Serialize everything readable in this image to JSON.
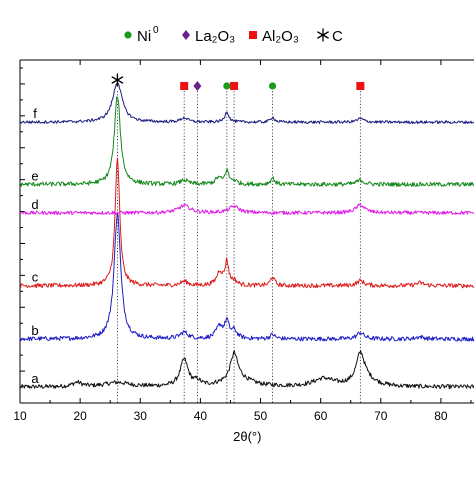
{
  "chart_data": {
    "type": "line",
    "xlabel": "2θ(°)",
    "ylabel": "",
    "xlim": [
      10,
      85
    ],
    "xticks": [
      10,
      20,
      30,
      40,
      50,
      60,
      70,
      80
    ],
    "grid": false,
    "legend": {
      "position": "top",
      "entries": [
        {
          "marker": "circle",
          "color": "#1a9b1a",
          "label": "Ni",
          "superscript": "0"
        },
        {
          "marker": "diamond",
          "color": "#6a1f8a",
          "label": "La₂O₃"
        },
        {
          "marker": "square",
          "color": "#ee1111",
          "label": "Al₂O₃"
        },
        {
          "marker": "asterisk",
          "color": "#000000",
          "label": "C"
        }
      ]
    },
    "reference_lines": [
      26.2,
      37.3,
      39.5,
      44.4,
      45.6,
      52.0,
      66.6
    ],
    "peak_markers": [
      {
        "x": 26.2,
        "marker": "asterisk",
        "color": "#000000"
      },
      {
        "x": 37.3,
        "marker": "square",
        "color": "#ee1111"
      },
      {
        "x": 39.5,
        "marker": "diamond",
        "color": "#6a1f8a"
      },
      {
        "x": 44.4,
        "marker": "circle",
        "color": "#1a9b1a"
      },
      {
        "x": 45.6,
        "marker": "square",
        "color": "#ee1111"
      },
      {
        "x": 52.0,
        "marker": "circle",
        "color": "#1a9b1a"
      },
      {
        "x": 66.6,
        "marker": "square",
        "color": "#ee1111"
      }
    ],
    "series": [
      {
        "label": "a",
        "color": "#111111",
        "baseline": 0.0,
        "noise": 0.006,
        "peaks": [
          {
            "x": 19.5,
            "h": 0.012,
            "w": 0.9
          },
          {
            "x": 26.2,
            "h": 0.012,
            "w": 2.5
          },
          {
            "x": 37.3,
            "h": 0.075,
            "w": 0.8
          },
          {
            "x": 39.5,
            "h": 0.012,
            "w": 0.6
          },
          {
            "x": 45.6,
            "h": 0.072,
            "w": 0.7
          },
          {
            "x": 46.2,
            "h": 0.025,
            "w": 2.5
          },
          {
            "x": 60.5,
            "h": 0.022,
            "w": 2.0
          },
          {
            "x": 66.6,
            "h": 0.078,
            "w": 0.8
          },
          {
            "x": 67.4,
            "h": 0.022,
            "w": 2.0
          }
        ]
      },
      {
        "label": "b",
        "color": "#1c1cc8",
        "baseline": 0.135,
        "noise": 0.006,
        "peaks": [
          {
            "x": 26.2,
            "h": 0.355,
            "w": 0.65
          },
          {
            "x": 37.3,
            "h": 0.018,
            "w": 0.8
          },
          {
            "x": 43.2,
            "h": 0.035,
            "w": 0.7
          },
          {
            "x": 44.4,
            "h": 0.045,
            "w": 0.4
          },
          {
            "x": 45.6,
            "h": 0.022,
            "w": 0.6
          },
          {
            "x": 52.0,
            "h": 0.012,
            "w": 0.5
          },
          {
            "x": 66.6,
            "h": 0.018,
            "w": 0.7
          },
          {
            "x": 76.5,
            "h": 0.006,
            "w": 0.8
          }
        ]
      },
      {
        "label": "c",
        "color": "#dd1c1c",
        "baseline": 0.285,
        "noise": 0.006,
        "peaks": [
          {
            "x": 26.2,
            "h": 0.36,
            "w": 0.45
          },
          {
            "x": 37.3,
            "h": 0.012,
            "w": 0.7
          },
          {
            "x": 43.2,
            "h": 0.038,
            "w": 0.6
          },
          {
            "x": 44.4,
            "h": 0.065,
            "w": 0.35
          },
          {
            "x": 45.6,
            "h": 0.012,
            "w": 0.6
          },
          {
            "x": 52.0,
            "h": 0.025,
            "w": 0.4
          },
          {
            "x": 66.6,
            "h": 0.014,
            "w": 0.7
          },
          {
            "x": 76.5,
            "h": 0.008,
            "w": 0.8
          }
        ]
      },
      {
        "label": "d",
        "color": "#e01ae8",
        "baseline": 0.49,
        "noise": 0.005,
        "peaks": [
          {
            "x": 37.3,
            "h": 0.02,
            "w": 1.2
          },
          {
            "x": 45.6,
            "h": 0.018,
            "w": 1.0
          },
          {
            "x": 66.6,
            "h": 0.022,
            "w": 0.9
          }
        ]
      },
      {
        "label": "e",
        "color": "#15891e",
        "baseline": 0.57,
        "noise": 0.006,
        "peaks": [
          {
            "x": 26.2,
            "h": 0.25,
            "w": 0.6
          },
          {
            "x": 37.3,
            "h": 0.012,
            "w": 0.7
          },
          {
            "x": 43.0,
            "h": 0.018,
            "w": 0.6
          },
          {
            "x": 44.4,
            "h": 0.038,
            "w": 0.35
          },
          {
            "x": 45.6,
            "h": 0.01,
            "w": 0.6
          },
          {
            "x": 52.0,
            "h": 0.018,
            "w": 0.4
          },
          {
            "x": 66.6,
            "h": 0.012,
            "w": 0.7
          }
        ]
      },
      {
        "label": "f",
        "color": "#1c1c80",
        "baseline": 0.745,
        "noise": 0.004,
        "peaks": [
          {
            "x": 26.2,
            "h": 0.112,
            "w": 0.95
          },
          {
            "x": 37.3,
            "h": 0.012,
            "w": 0.7
          },
          {
            "x": 44.4,
            "h": 0.03,
            "w": 0.4
          },
          {
            "x": 52.0,
            "h": 0.014,
            "w": 0.4
          },
          {
            "x": 66.6,
            "h": 0.01,
            "w": 0.7
          }
        ]
      }
    ]
  }
}
